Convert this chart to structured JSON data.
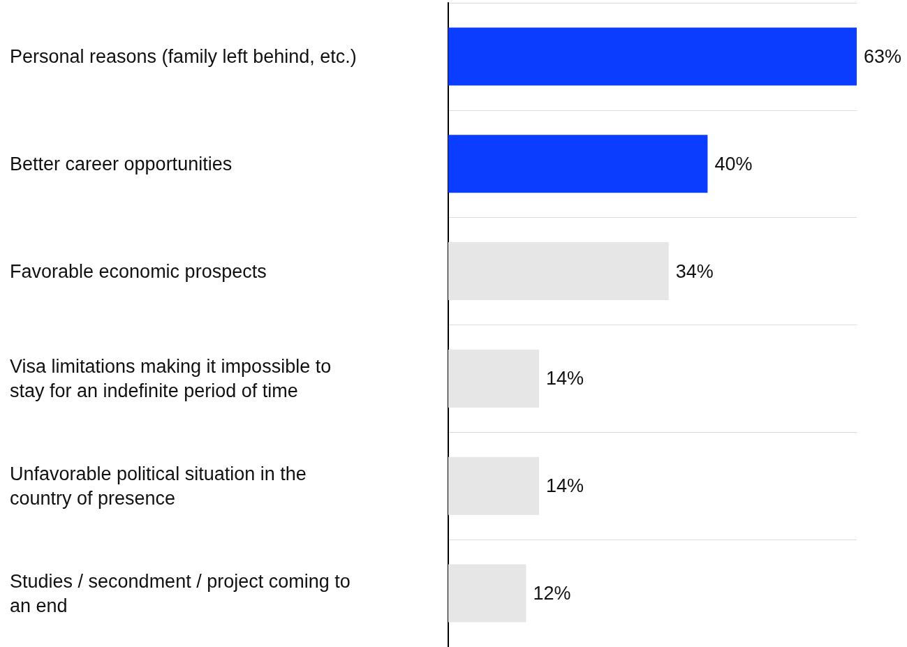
{
  "chart_data": {
    "type": "bar",
    "orientation": "horizontal",
    "categories": [
      "Personal reasons (family left behind, etc.)",
      "Better career opportunities",
      "Favorable economic prospects",
      "Visa limitations making it impossible to stay for an indefinite period of time",
      "Unfavorable political situation in the country of presence",
      "Studies / secondment / project coming to an end"
    ],
    "values": [
      63,
      40,
      34,
      14,
      14,
      12
    ],
    "colors": [
      "#0a3dff",
      "#0a3dff",
      "#e6e6e6",
      "#e6e6e6",
      "#e6e6e6",
      "#e6e6e6"
    ],
    "value_labels": [
      "63%",
      "40%",
      "34%",
      "14%",
      "14%",
      "12%"
    ],
    "grid": "y"
  }
}
